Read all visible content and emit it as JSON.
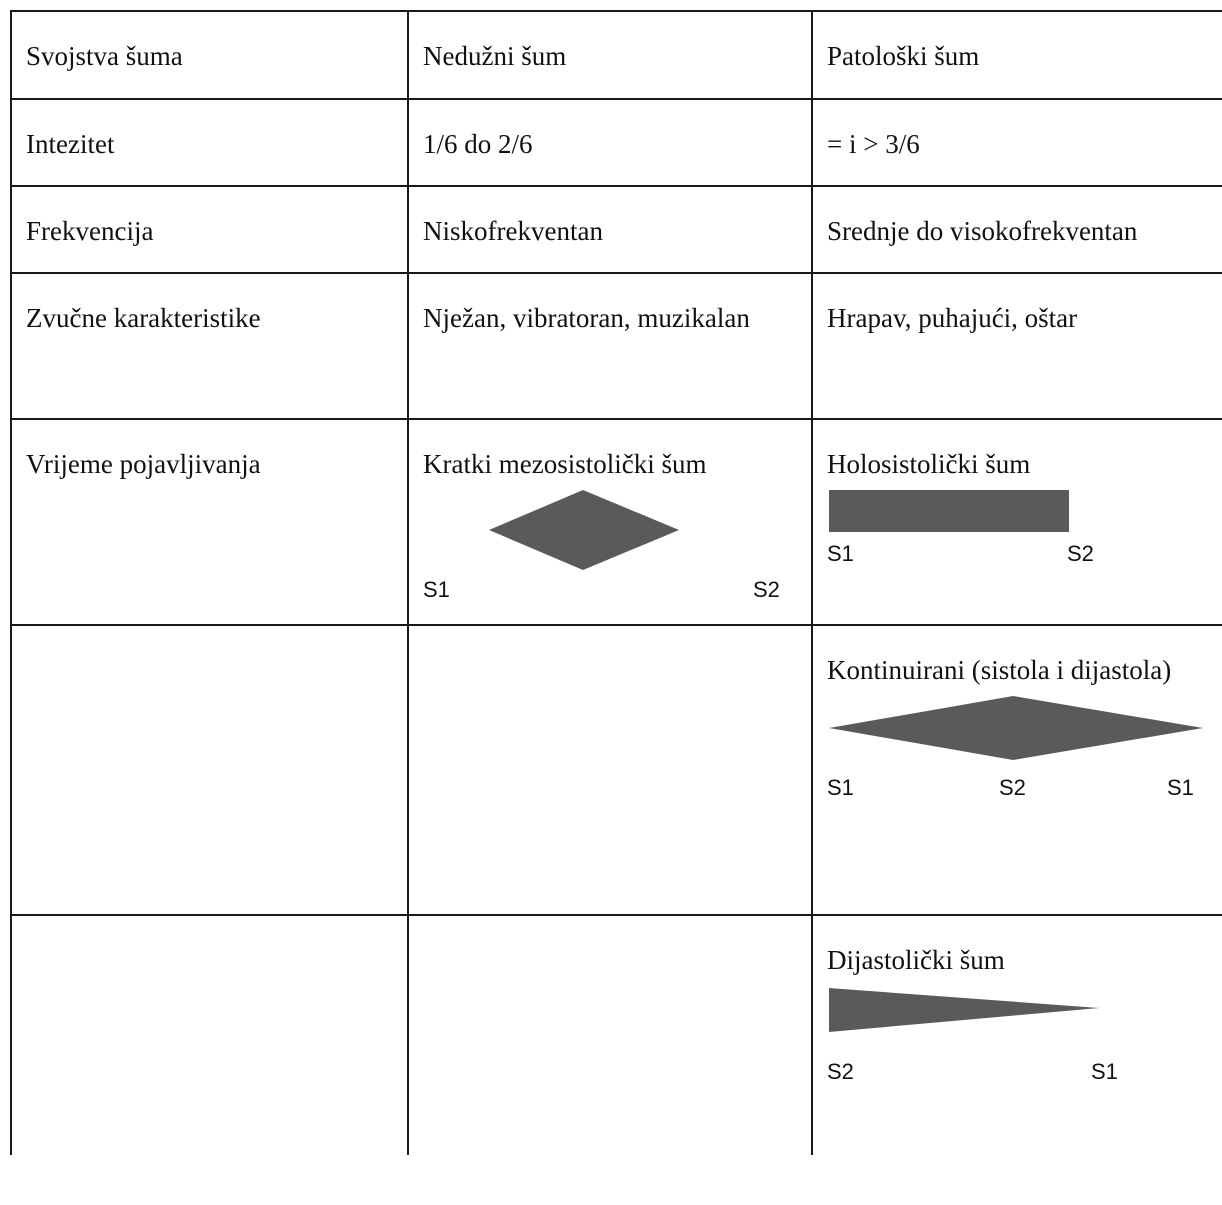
{
  "table": {
    "header": {
      "col1": "Svojstva šuma",
      "col2": "Nedužni šum",
      "col3": "Patološki šum"
    },
    "rows": [
      {
        "property": "Intezitet",
        "innocent": "1/6 do 2/6",
        "pathologic": "= i > 3/6"
      },
      {
        "property": "Frekvencija",
        "innocent": "Niskofrekventan",
        "pathologic": "Srednje do visokofrekventan"
      },
      {
        "property": "Zvučne karakteristike",
        "innocent": "Nježan, vibratoran, muzikalan",
        "pathologic": "Hrapav, puhajući, oštar"
      },
      {
        "property": "Vrijeme pojavljivanja",
        "innocent": "Kratki mezosistolički šum",
        "innocent_shape": "diamond",
        "innocent_labels": [
          "S1",
          "S2"
        ],
        "pathologic": "Holosistolički šum",
        "pathologic_shape": "rectangle",
        "pathologic_labels": [
          "S1",
          "S2"
        ]
      },
      {
        "property": "",
        "innocent": "",
        "pathologic": "Kontinuirani (sistola i dijastola)",
        "pathologic_shape": "diamond-wide",
        "pathologic_labels": [
          "S1",
          "S2",
          "S1"
        ]
      },
      {
        "property": "",
        "innocent": "",
        "pathologic": "Dijastolički šum",
        "pathologic_shape": "decrescendo",
        "pathologic_labels": [
          "S2",
          "S1"
        ]
      }
    ]
  },
  "colors": {
    "shape_fill": "#5a5a5a",
    "border": "#1a1a1a",
    "text": "#111111"
  }
}
